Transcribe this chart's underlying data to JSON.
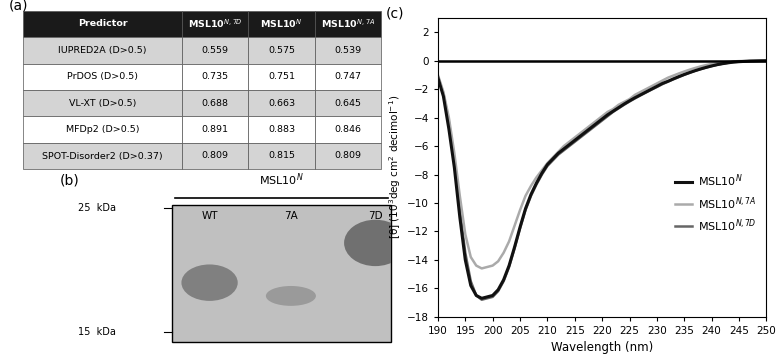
{
  "table_header": [
    "Predictor",
    "MSL10$^{N,7D}$",
    "MSL10$^{N}$",
    "MSL10$^{N,7A}$"
  ],
  "table_rows": [
    [
      "IUPRED2A (D>0.5)",
      "0.559",
      "0.575",
      "0.539"
    ],
    [
      "PrDOS (D>0.5)",
      "0.735",
      "0.751",
      "0.747"
    ],
    [
      "VL-XT (D>0.5)",
      "0.688",
      "0.663",
      "0.645"
    ],
    [
      "MFDp2 (D>0.5)",
      "0.891",
      "0.883",
      "0.846"
    ],
    [
      "SPOT-Disorder2 (D>0.37)",
      "0.809",
      "0.815",
      "0.809"
    ]
  ],
  "header_bg": "#1a1a1a",
  "header_fg": "white",
  "row_bg_odd": "#d4d4d4",
  "row_bg_even": "white",
  "wavelengths": [
    190,
    191,
    192,
    193,
    194,
    195,
    196,
    197,
    198,
    199,
    200,
    201,
    202,
    203,
    204,
    205,
    206,
    207,
    208,
    209,
    210,
    211,
    212,
    213,
    214,
    215,
    216,
    217,
    218,
    219,
    220,
    221,
    222,
    223,
    224,
    225,
    226,
    227,
    228,
    229,
    230,
    231,
    232,
    233,
    234,
    235,
    236,
    237,
    238,
    239,
    240,
    241,
    242,
    243,
    244,
    245,
    246,
    247,
    248,
    249,
    250
  ],
  "MSL10N": [
    -1.2,
    -2.5,
    -4.8,
    -7.5,
    -11.0,
    -14.0,
    -15.8,
    -16.5,
    -16.7,
    -16.6,
    -16.5,
    -16.1,
    -15.4,
    -14.4,
    -13.1,
    -11.7,
    -10.4,
    -9.4,
    -8.6,
    -7.9,
    -7.3,
    -6.9,
    -6.5,
    -6.2,
    -5.9,
    -5.6,
    -5.3,
    -5.0,
    -4.7,
    -4.4,
    -4.1,
    -3.8,
    -3.55,
    -3.3,
    -3.05,
    -2.82,
    -2.6,
    -2.4,
    -2.2,
    -2.0,
    -1.8,
    -1.6,
    -1.45,
    -1.28,
    -1.12,
    -0.97,
    -0.83,
    -0.7,
    -0.58,
    -0.47,
    -0.37,
    -0.28,
    -0.21,
    -0.15,
    -0.1,
    -0.07,
    -0.05,
    -0.03,
    -0.02,
    -0.01,
    -0.005
  ],
  "MSL10N7A": [
    -1.0,
    -2.2,
    -4.0,
    -6.5,
    -9.5,
    -12.2,
    -13.8,
    -14.4,
    -14.6,
    -14.5,
    -14.4,
    -14.1,
    -13.5,
    -12.7,
    -11.6,
    -10.5,
    -9.5,
    -8.8,
    -8.2,
    -7.7,
    -7.2,
    -6.8,
    -6.4,
    -6.0,
    -5.7,
    -5.4,
    -5.1,
    -4.8,
    -4.5,
    -4.2,
    -3.9,
    -3.6,
    -3.4,
    -3.1,
    -2.9,
    -2.7,
    -2.4,
    -2.2,
    -2.0,
    -1.8,
    -1.6,
    -1.4,
    -1.2,
    -1.05,
    -0.9,
    -0.76,
    -0.63,
    -0.51,
    -0.4,
    -0.31,
    -0.23,
    -0.17,
    -0.12,
    -0.08,
    -0.05,
    -0.03,
    -0.02,
    -0.01,
    -0.007,
    -0.004,
    -0.002
  ],
  "MSL10N7D": [
    -1.1,
    -2.3,
    -4.3,
    -7.0,
    -10.5,
    -13.5,
    -15.5,
    -16.5,
    -16.8,
    -16.7,
    -16.6,
    -16.2,
    -15.5,
    -14.5,
    -13.2,
    -11.8,
    -10.5,
    -9.5,
    -8.7,
    -8.0,
    -7.4,
    -7.0,
    -6.6,
    -6.3,
    -6.0,
    -5.7,
    -5.4,
    -5.1,
    -4.8,
    -4.5,
    -4.2,
    -3.9,
    -3.6,
    -3.35,
    -3.1,
    -2.87,
    -2.65,
    -2.44,
    -2.24,
    -2.04,
    -1.85,
    -1.65,
    -1.48,
    -1.31,
    -1.15,
    -0.99,
    -0.85,
    -0.71,
    -0.59,
    -0.48,
    -0.38,
    -0.29,
    -0.21,
    -0.15,
    -0.1,
    -0.07,
    -0.05,
    -0.03,
    -0.02,
    -0.01,
    -0.005
  ],
  "xlabel": "Wavelength (nm)",
  "ylim": [
    -18,
    3
  ],
  "xlim": [
    190,
    250
  ],
  "yticks": [
    2,
    0,
    -2,
    -4,
    -6,
    -8,
    -10,
    -12,
    -14,
    -16,
    -18
  ],
  "xticks": [
    190,
    195,
    200,
    205,
    210,
    215,
    220,
    225,
    230,
    235,
    240,
    245,
    250
  ],
  "line_colors": {
    "MSL10N": "#111111",
    "MSL10N7A": "#aaaaaa",
    "MSL10N7D": "#666666"
  },
  "line_widths": {
    "MSL10N": 2.2,
    "MSL10N7A": 1.8,
    "MSL10N7D": 1.8
  }
}
